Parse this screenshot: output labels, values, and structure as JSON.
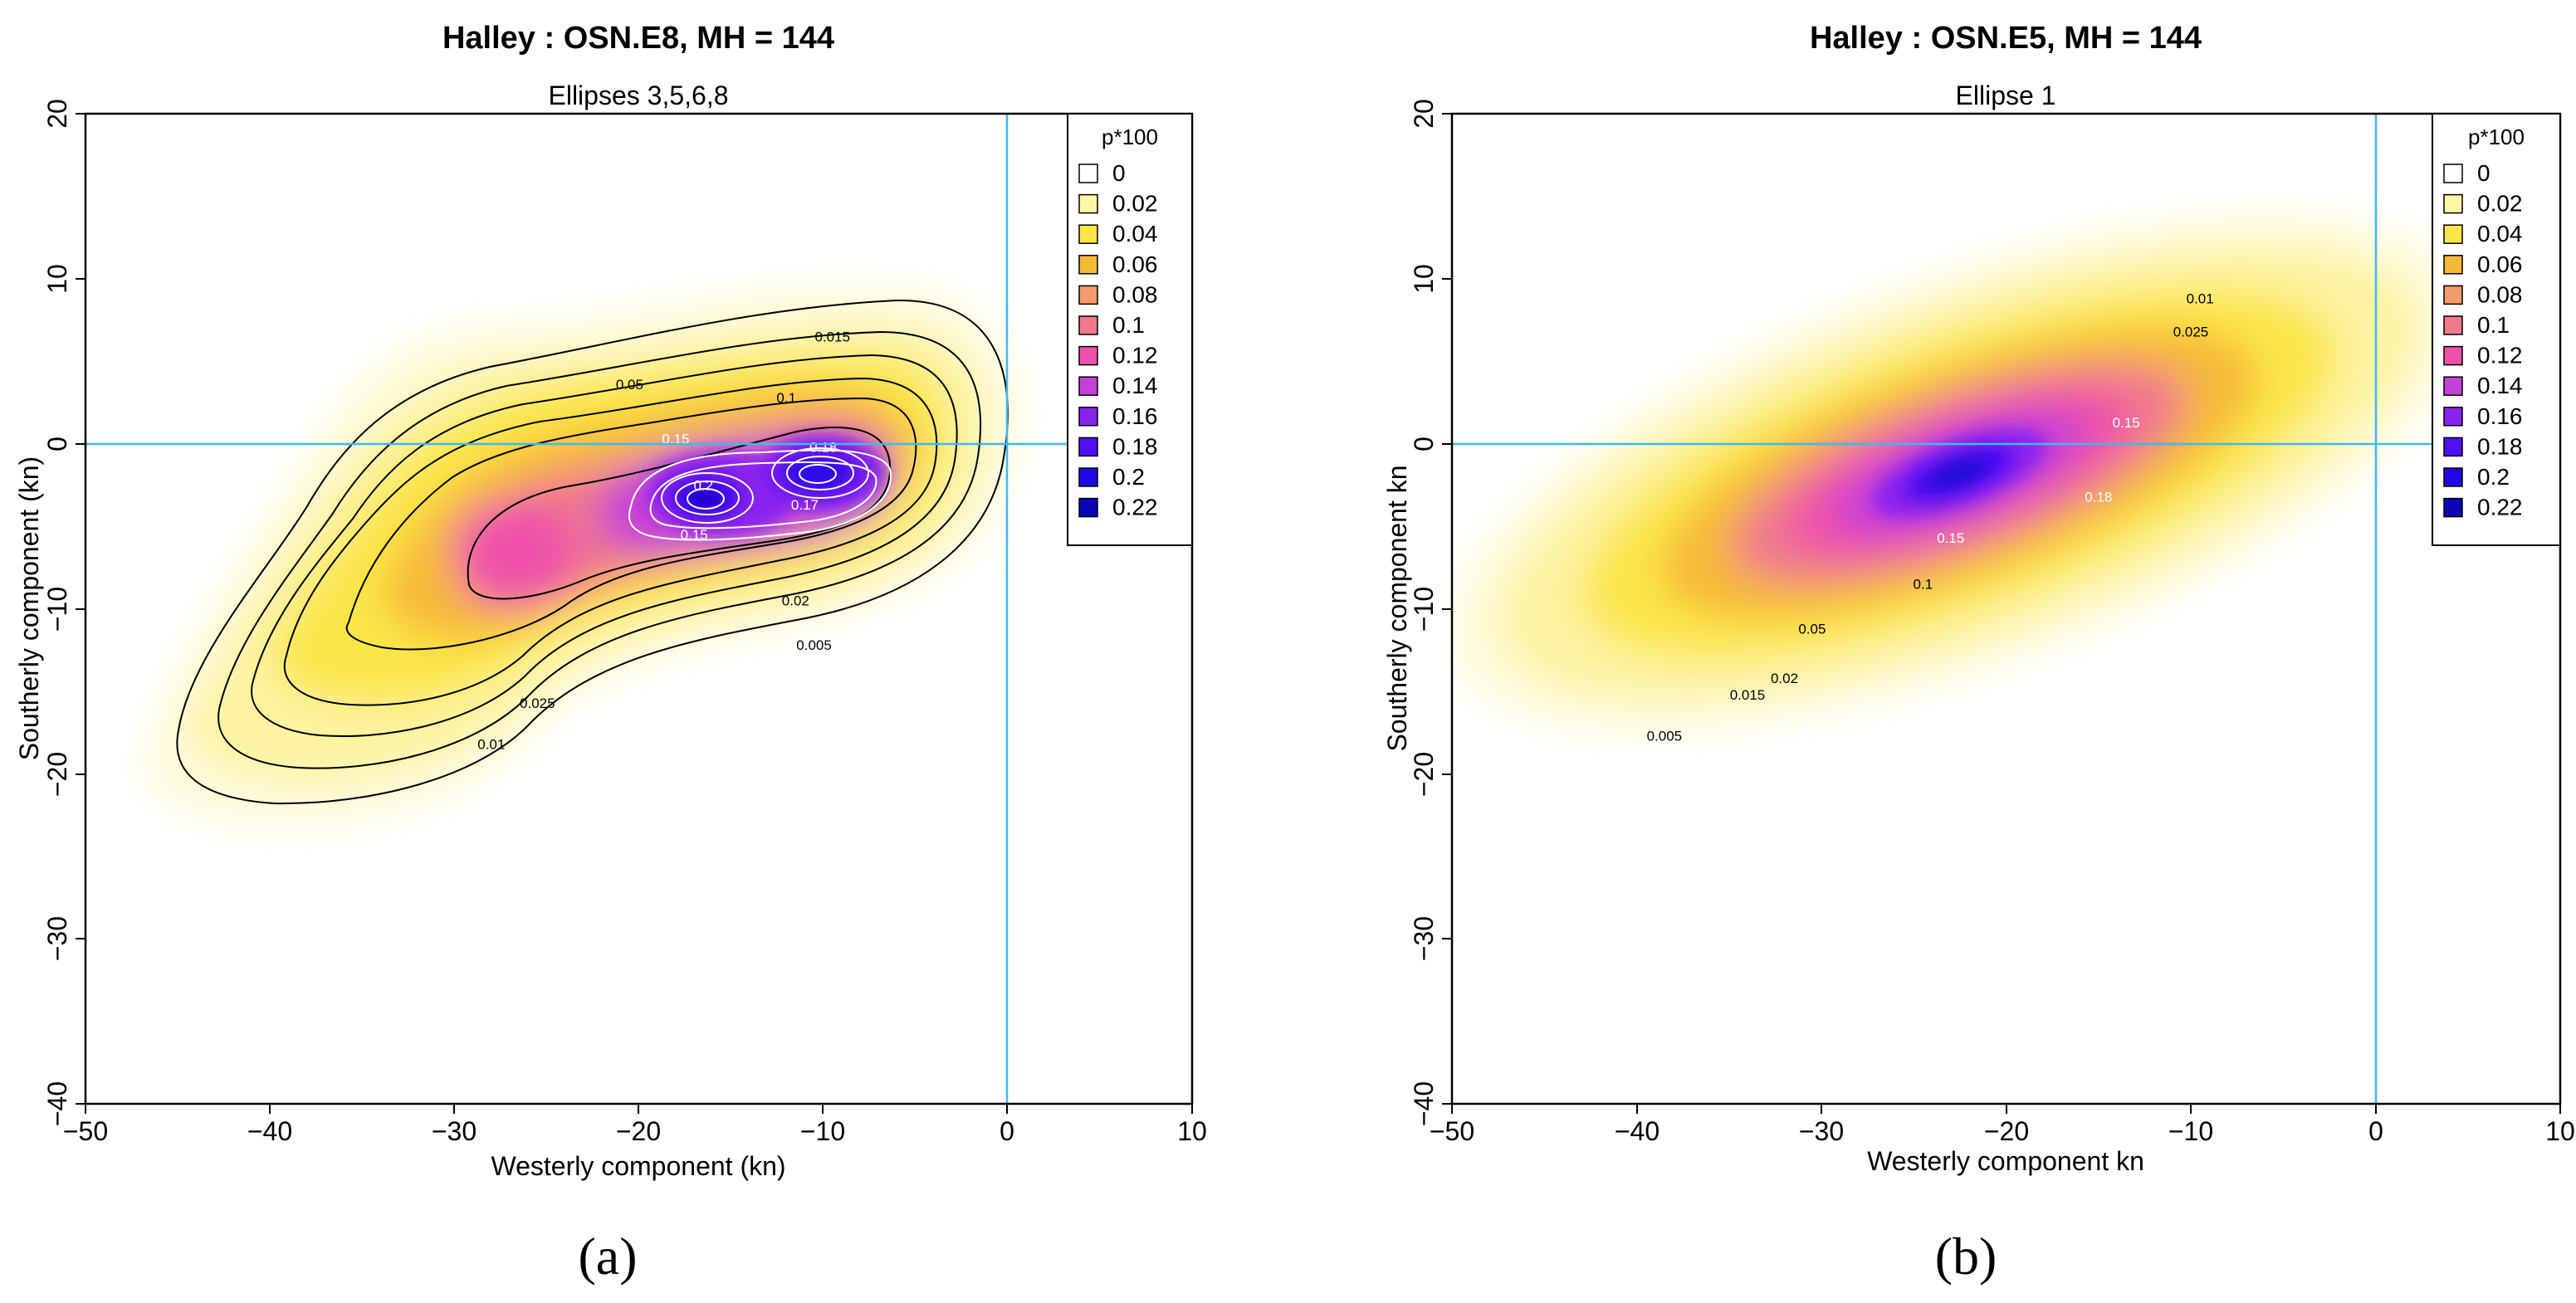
{
  "figure": {
    "panel_labels": [
      "(a)",
      "(b)"
    ]
  },
  "legend": {
    "title": "p*100",
    "items": [
      {
        "label": "0",
        "color": "#ffffff"
      },
      {
        "label": "0.02",
        "color": "#fdf6a6"
      },
      {
        "label": "0.04",
        "color": "#fbe64a"
      },
      {
        "label": "0.06",
        "color": "#f6b937"
      },
      {
        "label": "0.08",
        "color": "#f29c6a"
      },
      {
        "label": "0.1",
        "color": "#f07a8b"
      },
      {
        "label": "0.12",
        "color": "#ef51a9"
      },
      {
        "label": "0.14",
        "color": "#c441d8"
      },
      {
        "label": "0.16",
        "color": "#8a22ee"
      },
      {
        "label": "0.18",
        "color": "#5210f2"
      },
      {
        "label": "0.2",
        "color": "#2008e6"
      },
      {
        "label": "0.22",
        "color": "#0a06b8"
      }
    ]
  },
  "colors": {
    "reference_lines": "#3fb8f0",
    "contour_lines": "#000000",
    "inner_contour_lines": "#ffffff"
  },
  "chart_data": [
    {
      "type": "contour",
      "title": "Halley : OSN.E8, MH = 144",
      "subtitle": "Ellipses 3,5,6,8",
      "xlabel": "Westerly component (kn)",
      "ylabel": "Southerly component (kn)",
      "xlim": [
        -50,
        10
      ],
      "ylim": [
        -40,
        20
      ],
      "xticks": [
        "−50",
        "−40",
        "−30",
        "−20",
        "−10",
        "0",
        "10"
      ],
      "yticks": [
        "−40",
        "−30",
        "−20",
        "−10",
        "0",
        "10",
        "20"
      ],
      "reference_lines": {
        "x": 0,
        "y": 0
      },
      "density_peaks": [
        {
          "x": -16,
          "y": -3,
          "level": 0.2
        },
        {
          "x": -10,
          "y": -2,
          "level": 0.18
        },
        {
          "x": -26,
          "y": -7,
          "level": 0.11
        }
      ],
      "contour_levels": [
        0.005,
        0.01,
        0.015,
        0.02,
        0.025,
        0.05,
        0.1
      ],
      "contour_labels": [
        {
          "text": "0.015",
          "x": -9.5,
          "y": 6.2
        },
        {
          "text": "0.05",
          "x": -20.5,
          "y": 3.3
        },
        {
          "text": "0.1",
          "x": -12,
          "y": 2.5
        },
        {
          "text": "0.15",
          "x": -18,
          "y": 0
        },
        {
          "text": "0.18",
          "x": -10,
          "y": -0.5
        },
        {
          "text": "0.2",
          "x": -16.5,
          "y": -2.8
        },
        {
          "text": "0.15",
          "x": -17,
          "y": -5.8
        },
        {
          "text": "0.17",
          "x": -11,
          "y": -4
        },
        {
          "text": "0.02",
          "x": -11.5,
          "y": -9.8
        },
        {
          "text": "0.005",
          "x": -10.5,
          "y": -12.5
        },
        {
          "text": "0.025",
          "x": -25.5,
          "y": -16
        },
        {
          "text": "0.01",
          "x": -28,
          "y": -18.5
        }
      ]
    },
    {
      "type": "contour",
      "title": "Halley : OSN.E5, MH = 144",
      "subtitle": "Ellipse 1",
      "xlabel": "Westerly component kn",
      "ylabel": "Southerly component kn",
      "xlim": [
        -50,
        10
      ],
      "ylim": [
        -40,
        20
      ],
      "xticks": [
        "−50",
        "−40",
        "−30",
        "−20",
        "−10",
        "0",
        "10"
      ],
      "yticks": [
        "−40",
        "−30",
        "−20",
        "−10",
        "0",
        "10",
        "20"
      ],
      "reference_lines": {
        "x": 0,
        "y": 0
      },
      "density_peaks": [
        {
          "x": -15,
          "y": -2.5,
          "level": 0.2
        }
      ],
      "contour_levels": [
        0.005,
        0.01,
        0.015,
        0.02,
        0.025,
        0.05,
        0.1
      ],
      "contour_labels": [
        {
          "text": "0.01",
          "x": -9.5,
          "y": 8.5
        },
        {
          "text": "0.025",
          "x": -10,
          "y": 6.5
        },
        {
          "text": "0.15",
          "x": -13.5,
          "y": 1
        },
        {
          "text": "0.18",
          "x": -15,
          "y": -3.5
        },
        {
          "text": "0.15",
          "x": -23,
          "y": -6
        },
        {
          "text": "0.1",
          "x": -24.5,
          "y": -8.8
        },
        {
          "text": "0.05",
          "x": -30.5,
          "y": -11.5
        },
        {
          "text": "0.02",
          "x": -32,
          "y": -14.5
        },
        {
          "text": "0.015",
          "x": -34,
          "y": -15.5
        },
        {
          "text": "0.005",
          "x": -38.5,
          "y": -18
        }
      ]
    }
  ]
}
